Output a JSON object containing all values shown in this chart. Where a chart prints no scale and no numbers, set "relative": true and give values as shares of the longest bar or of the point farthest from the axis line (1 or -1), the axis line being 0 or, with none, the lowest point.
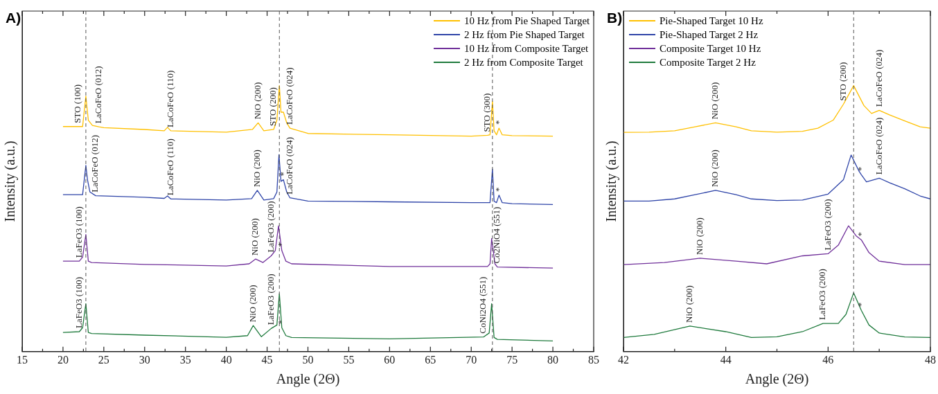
{
  "chart_data": [
    {
      "type": "line",
      "relative": true,
      "xlabel": "Angle (2Θ)",
      "ylabel": "Intensity (a.u.)",
      "xlim": [
        15,
        85
      ],
      "xticks": [
        15,
        {
          "value": 17.5,
          "label": null
        },
        20,
        {
          "value": 22.5,
          "label": null
        },
        25,
        {
          "value": 27.5,
          "label": null
        },
        30,
        {
          "value": 32.5,
          "label": null
        },
        35,
        {
          "value": 37.5,
          "label": null
        },
        40,
        {
          "value": 42.5,
          "label": null
        },
        45,
        {
          "value": 47.5,
          "label": null
        },
        50,
        {
          "value": 52.5,
          "label": null
        },
        55,
        {
          "value": 57.5,
          "label": null
        },
        60,
        {
          "value": 62.5,
          "label": null
        },
        65,
        {
          "value": 67.5,
          "label": null
        },
        70,
        {
          "value": 72.5,
          "label": null
        },
        75,
        {
          "value": 77.5,
          "label": null
        },
        80,
        {
          "value": 82.5,
          "label": null
        },
        85
      ],
      "grid": false,
      "legend": "top right",
      "series": [
        {
          "name": "10 Hz from Pie Shaped Target",
          "color": "#ffc000",
          "x": [
            20,
            21.8,
            22.4,
            22.8,
            23.1,
            23.6,
            24.4,
            25,
            30,
            32.4,
            32.8,
            33.2,
            40,
            43.2,
            43.9,
            44.6,
            45.8,
            46.2,
            46.5,
            46.7,
            47.0,
            47.4,
            47.8,
            50,
            60,
            70,
            72.0,
            72.3,
            72.6,
            72.8,
            73.1,
            73.4,
            73.8,
            75,
            80
          ],
          "values": [
            0.846,
            0.846,
            0.846,
            0.96,
            0.87,
            0.85,
            0.845,
            0.842,
            0.835,
            0.83,
            0.843,
            0.83,
            0.825,
            0.835,
            0.86,
            0.83,
            0.835,
            0.87,
            1.0,
            0.9,
            0.9,
            0.86,
            0.84,
            0.82,
            0.815,
            0.81,
            0.813,
            0.815,
            0.94,
            0.83,
            0.815,
            0.84,
            0.815,
            0.812,
            0.81
          ]
        },
        {
          "name": "2 Hz from Pie Shaped Target",
          "color": "#2e44a8",
          "x": [
            20,
            22.4,
            22.8,
            23.0,
            23.3,
            24,
            30,
            32.4,
            32.8,
            33.2,
            40,
            43.1,
            43.8,
            44.6,
            45.8,
            46.2,
            46.45,
            46.7,
            47.0,
            47.4,
            47.8,
            50,
            60,
            70,
            72.3,
            72.6,
            72.8,
            73.1,
            73.4,
            73.8,
            75,
            80
          ],
          "values": [
            0.59,
            0.59,
            0.7,
            0.646,
            0.6,
            0.586,
            0.58,
            0.576,
            0.585,
            0.574,
            0.57,
            0.575,
            0.606,
            0.57,
            0.575,
            0.6,
            0.74,
            0.64,
            0.646,
            0.6,
            0.578,
            0.566,
            0.563,
            0.56,
            0.56,
            0.686,
            0.565,
            0.56,
            0.588,
            0.56,
            0.556,
            0.553
          ]
        },
        {
          "name": "10 Hz from Composite Target",
          "color": "#70309a",
          "x": [
            20,
            22.0,
            22.4,
            22.8,
            23.1,
            23.5,
            30,
            40,
            42.8,
            43.6,
            44.5,
            45.5,
            46.0,
            46.4,
            46.8,
            47.3,
            48,
            60,
            72.0,
            72.3,
            72.5,
            72.7,
            72.9,
            73.2,
            80
          ],
          "values": [
            0.34,
            0.34,
            0.355,
            0.44,
            0.34,
            0.335,
            0.328,
            0.322,
            0.33,
            0.348,
            0.335,
            0.36,
            0.38,
            0.473,
            0.38,
            0.34,
            0.33,
            0.32,
            0.32,
            0.33,
            0.425,
            0.38,
            0.33,
            0.318,
            0.314
          ]
        },
        {
          "name": "2 Hz from Composite Target",
          "color": "#1e7a3c",
          "x": [
            20,
            22.0,
            22.4,
            22.8,
            23.1,
            23.5,
            30,
            40,
            42.6,
            43.3,
            44.3,
            45.5,
            46.2,
            46.5,
            46.8,
            47.3,
            48,
            60,
            71.5,
            72.2,
            72.5,
            72.8,
            73.2,
            80
          ],
          "values": [
            0.072,
            0.075,
            0.09,
            0.18,
            0.072,
            0.068,
            0.062,
            0.054,
            0.06,
            0.098,
            0.056,
            0.087,
            0.1,
            0.218,
            0.09,
            0.06,
            0.053,
            0.048,
            0.055,
            0.07,
            0.18,
            0.053,
            0.046,
            0.04
          ]
        }
      ],
      "ref_lines": [
        {
          "axis": "x",
          "value": 22.8,
          "color": "#555555",
          "line_style": "dashed"
        },
        {
          "axis": "x",
          "value": 46.5,
          "color": "#555555",
          "line_style": "dashed"
        },
        {
          "axis": "x",
          "value": 72.6,
          "color": "#555555",
          "line_style": "dashed"
        }
      ],
      "annotations": [
        "A)",
        {
          "text": "STO (100)",
          "x": 21.8,
          "y": 0.846
        },
        {
          "text": "LaCoFeO (012)",
          "x": 24.4,
          "y": 0.845
        },
        {
          "text": "LaCoFeO (110)",
          "x": 33.2,
          "y": 0.83
        },
        {
          "text": "NiO (200)",
          "x": 43.9,
          "y": 0.86
        },
        {
          "text": "STO (200)",
          "x": 45.8,
          "y": 0.835
        },
        {
          "text": "LaCoFeO (024)",
          "x": 47.8,
          "y": 0.84
        },
        {
          "text": "STO (300)",
          "x": 72.0,
          "y": 0.813
        },
        {
          "text": "*",
          "x": 73.4,
          "y": 0.84
        },
        {
          "text": "LaCoFeO (012)",
          "x": 24,
          "y": 0.586
        },
        {
          "text": "LaCoFeO (110)",
          "x": 33.2,
          "y": 0.574
        },
        {
          "text": "NiO (200)",
          "x": 43.8,
          "y": 0.606
        },
        {
          "text": "*",
          "x": 47.0,
          "y": 0.646
        },
        {
          "text": "LaCoFeO (024)",
          "x": 47.8,
          "y": 0.578
        },
        {
          "text": "*",
          "x": 73.4,
          "y": 0.588
        },
        {
          "text": "LaFeO3 (100)",
          "x": 22.0,
          "y": 0.34
        },
        {
          "text": "NiO (200)",
          "x": 43.6,
          "y": 0.348
        },
        {
          "text": "LaFeO3 (200)",
          "x": 45.5,
          "y": 0.36
        },
        {
          "text": "*",
          "x": 46.8,
          "y": 0.38
        },
        {
          "text": "Co2NiO4 (551)",
          "x": 73.2,
          "y": 0.318
        },
        {
          "text": "LaFeO3 (100)",
          "x": 22.0,
          "y": 0.075
        },
        {
          "text": "NiO (200)",
          "x": 43.3,
          "y": 0.098
        },
        {
          "text": "LaFeO3 (200)",
          "x": 45.5,
          "y": 0.087
        },
        {
          "text": "*",
          "x": 46.8,
          "y": 0.09
        },
        {
          "text": "CoNi2O4 (551)",
          "x": 71.5,
          "y": 0.055
        }
      ]
    },
    {
      "type": "line",
      "relative": true,
      "xlabel": "Angle (2Θ)",
      "ylabel": "Intensity (a.u.)",
      "xlim": [
        42,
        48
      ],
      "xticks": [
        42,
        {
          "value": 43,
          "label": null
        },
        44,
        {
          "value": 45,
          "label": null
        },
        46,
        {
          "value": 47,
          "label": null
        },
        48
      ],
      "grid": false,
      "legend": "top left",
      "series": [
        {
          "name": "Pie-Shaped Target 10 Hz",
          "color": "#ffc000",
          "x": [
            42,
            42.5,
            43,
            43.4,
            43.8,
            44.2,
            44.5,
            45,
            45.5,
            45.8,
            46.1,
            46.3,
            46.5,
            46.7,
            46.85,
            47.0,
            47.2,
            47.5,
            47.8,
            48
          ],
          "values": [
            0.824,
            0.825,
            0.83,
            0.845,
            0.86,
            0.845,
            0.83,
            0.825,
            0.828,
            0.84,
            0.87,
            0.93,
            1.0,
            0.925,
            0.895,
            0.907,
            0.89,
            0.867,
            0.845,
            0.84
          ]
        },
        {
          "name": "Pie-Shaped Target 2 Hz",
          "color": "#2e44a8",
          "x": [
            42,
            42.5,
            43,
            43.4,
            43.8,
            44.2,
            44.5,
            45,
            45.5,
            46.0,
            46.3,
            46.45,
            46.6,
            46.65,
            46.75,
            47.0,
            47.2,
            47.5,
            47.8,
            48
          ],
          "values": [
            0.566,
            0.566,
            0.574,
            0.59,
            0.606,
            0.59,
            0.574,
            0.568,
            0.57,
            0.592,
            0.646,
            0.739,
            0.68,
            0.665,
            0.638,
            0.652,
            0.635,
            0.612,
            0.585,
            0.574
          ]
        },
        {
          "name": "Composite Target 10 Hz",
          "color": "#70309a",
          "x": [
            42,
            42.8,
            43.5,
            44.2,
            44.8,
            45.5,
            46.0,
            46.2,
            46.4,
            46.55,
            46.65,
            46.8,
            47.0,
            47.5,
            48
          ],
          "values": [
            0.327,
            0.335,
            0.351,
            0.34,
            0.33,
            0.36,
            0.368,
            0.4,
            0.473,
            0.435,
            0.42,
            0.372,
            0.34,
            0.327,
            0.327
          ]
        },
        {
          "name": "Composite Target 2 Hz",
          "color": "#1e7a3c",
          "x": [
            42,
            42.6,
            43.3,
            44.0,
            44.5,
            45.0,
            45.5,
            45.9,
            46.2,
            46.35,
            46.5,
            46.65,
            46.8,
            47.0,
            47.5,
            48
          ],
          "values": [
            0.053,
            0.065,
            0.096,
            0.075,
            0.053,
            0.056,
            0.075,
            0.106,
            0.106,
            0.14,
            0.221,
            0.155,
            0.1,
            0.07,
            0.055,
            0.053
          ]
        }
      ],
      "ref_lines": [
        {
          "axis": "x",
          "value": 46.5,
          "color": "#555555",
          "line_style": "dashed"
        }
      ],
      "annotations": [
        "B)",
        {
          "text": "NiO (200)",
          "x": 43.8,
          "y": 0.86
        },
        {
          "text": "STO (200)",
          "x": 46.3,
          "y": 0.93
        },
        {
          "text": "LaCoFeO (024)",
          "x": 47.0,
          "y": 0.907
        },
        {
          "text": "NiO (200)",
          "x": 43.8,
          "y": 0.606
        },
        {
          "text": "*",
          "x": 46.65,
          "y": 0.665
        },
        {
          "text": "LaCoFeO (024)",
          "x": 47.0,
          "y": 0.652
        },
        {
          "text": "NiO (200)",
          "x": 43.5,
          "y": 0.351
        },
        {
          "text": "LaFeO3 (200)",
          "x": 46.0,
          "y": 0.368
        },
        {
          "text": "*",
          "x": 46.65,
          "y": 0.42
        },
        {
          "text": "NiO (200)",
          "x": 43.3,
          "y": 0.096
        },
        {
          "text": "LaFeO3 (200)",
          "x": 45.9,
          "y": 0.106
        },
        {
          "text": "*",
          "x": 46.65,
          "y": 0.155
        }
      ]
    }
  ]
}
